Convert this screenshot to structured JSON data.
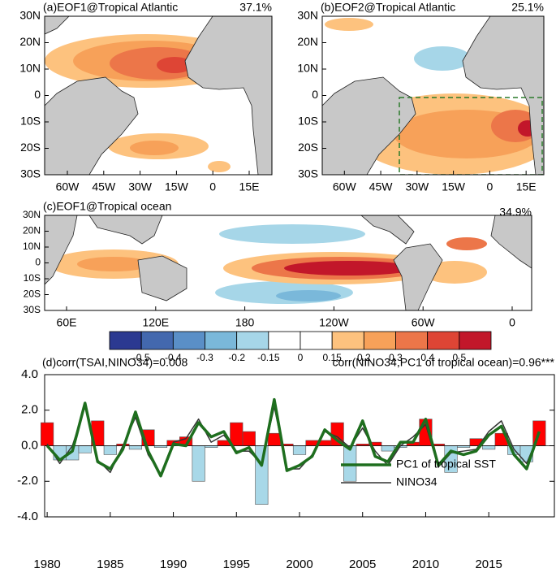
{
  "panels": [
    {
      "title": "(a)EOF1@Tropical Atlantic",
      "variance": "37.1%",
      "xticks": [
        "60W",
        "45W",
        "30W",
        "15W",
        "0",
        "15E"
      ],
      "yticks": [
        "30N",
        "20N",
        "10N",
        "0",
        "10S",
        "20S",
        "30S"
      ]
    },
    {
      "title": "(b)EOF2@Tropical Atlantic",
      "variance": "25.1%",
      "xticks": [
        "60W",
        "45W",
        "30W",
        "15W",
        "0",
        "15E"
      ],
      "yticks": [
        "30N",
        "20N",
        "10N",
        "0",
        "10S",
        "20S",
        "30S"
      ]
    },
    {
      "title": "(c)EOF1@Tropical ocean",
      "variance": "34.9%",
      "xticks": [
        "60E",
        "120E",
        "180",
        "120W",
        "60W",
        "0"
      ],
      "yticks": [
        "30N",
        "20N",
        "10N",
        "0",
        "10S",
        "20S",
        "30S"
      ]
    }
  ],
  "colorbar": {
    "labels": [
      "-0.5",
      "-0.4",
      "-0.3",
      "-0.2",
      "-0.15",
      "0",
      "0.15",
      "0.2",
      "0.3",
      "0.4",
      "0.5"
    ],
    "colors": [
      "#2b3991",
      "#4368ae",
      "#5a8fc7",
      "#7ab8da",
      "#a6d6e8",
      "#ffffff",
      "#ffffff",
      "#fdc27e",
      "#f7a159",
      "#ec7649",
      "#de4535",
      "#c2172a"
    ]
  },
  "chart_data": {
    "type": "bar",
    "title": "(d)corr(TSAI,NINO34)=0.008",
    "subtitle": "corr(NINO34,PC1 of tropical ocean)=0.96***",
    "x": [
      1980,
      1981,
      1982,
      1983,
      1984,
      1985,
      1986,
      1987,
      1988,
      1989,
      1990,
      1991,
      1992,
      1993,
      1994,
      1995,
      1996,
      1997,
      1998,
      1999,
      2000,
      2001,
      2002,
      2003,
      2004,
      2005,
      2006,
      2007,
      2008,
      2009,
      2010,
      2011,
      2012,
      2013,
      2014,
      2015,
      2016,
      2017,
      2018,
      2019
    ],
    "bars": {
      "positive_color": "#ff0000",
      "negative_color": "#a8d8e8",
      "values": [
        1.3,
        -0.8,
        -0.8,
        -0.4,
        1.4,
        -0.5,
        0.1,
        -0.2,
        0.9,
        -0.1,
        0.3,
        0.5,
        -2.0,
        -0.1,
        0.3,
        1.3,
        0.8,
        -3.3,
        0.7,
        0.1,
        -0.5,
        0.3,
        0.3,
        1.3,
        -2.0,
        0.1,
        0.2,
        -0.3,
        -0.1,
        0.2,
        1.5,
        0.1,
        -1.5,
        -0.1,
        0.4,
        -0.2,
        0.7,
        -0.5,
        -0.9,
        1.4
      ]
    },
    "series": [
      {
        "name": "PC1 of tropical SST",
        "color": "#1e6e1e",
        "width": 3.5,
        "values": [
          0.0,
          -0.8,
          -0.3,
          2.4,
          -0.9,
          -1.3,
          -0.2,
          1.9,
          -0.3,
          -1.7,
          0.1,
          0.0,
          1.3,
          0.5,
          0.8,
          -0.4,
          -0.1,
          -1.1,
          2.6,
          -1.4,
          -1.1,
          -0.6,
          0.9,
          0.3,
          -0.2,
          1.4,
          -0.6,
          -0.9,
          0.2,
          0.2,
          1.5,
          -1.1,
          -0.3,
          -0.5,
          -0.3,
          0.6,
          1.1,
          -0.5,
          -1.3,
          0.8
        ]
      },
      {
        "name": "NINO34",
        "color": "#333333",
        "width": 1.5,
        "values": [
          0.1,
          -1.0,
          0.0,
          2.2,
          -0.8,
          -1.5,
          0.0,
          1.6,
          -0.5,
          -1.6,
          0.2,
          0.4,
          1.5,
          0.2,
          0.6,
          -0.3,
          -0.3,
          -1.0,
          2.2,
          -1.3,
          -1.3,
          -0.5,
          0.8,
          0.5,
          -0.1,
          1.0,
          -0.3,
          -1.1,
          0.0,
          0.5,
          1.2,
          -1.2,
          -0.4,
          -0.3,
          -0.2,
          0.8,
          1.4,
          -0.2,
          -1.0,
          0.7
        ]
      }
    ],
    "xlim": [
      1979.8,
      2020.2
    ],
    "xticks": [
      1980,
      1985,
      1990,
      1995,
      2000,
      2005,
      2010,
      2015
    ],
    "ylim": [
      -4,
      4
    ],
    "yticks": [
      {
        "value": -4,
        "label": "-4.0"
      },
      {
        "value": -2,
        "label": "-2.0"
      },
      {
        "value": 0,
        "label": "0.0"
      },
      {
        "value": 2,
        "label": "2.0"
      },
      {
        "value": 4,
        "label": "4.0"
      }
    ],
    "legend": "lower right"
  }
}
